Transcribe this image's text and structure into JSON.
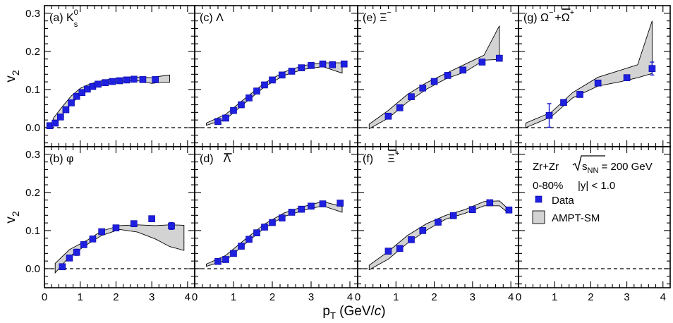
{
  "chart_data": {
    "type": "scatter",
    "shared": {
      "xlim": [
        0,
        4.2
      ],
      "ylim": [
        -0.05,
        0.32
      ],
      "xticks": [
        "0",
        "1",
        "2",
        "3",
        "4"
      ],
      "yticks": [
        "0.0",
        "0.1",
        "0.2",
        "0.3"
      ],
      "xlabel": "p",
      "xlabel_sub": "T",
      "xlabel_unit": " (GeV/",
      "xlabel_unit_italic": "c",
      "xlabel_close": ")",
      "ylabel": "v",
      "ylabel_sub": "2",
      "reference_line_y": 0.0
    },
    "legend": {
      "system": "Zr+Zr",
      "energy_prefix": "s",
      "energy_sub": "NN",
      "energy_value": " = 200 GeV",
      "centrality": "0-80%",
      "rapidity": "|y| < 1.0",
      "data_label": "Data",
      "band_label": "AMPT-SM"
    },
    "colors": {
      "data": "#1f1fe0",
      "band_fill": "#d3d3d3"
    },
    "panels": [
      {
        "id": "a",
        "label": "(a) K",
        "label_sup": "0",
        "label_sub": "s",
        "data": [
          [
            0.15,
            0.005
          ],
          [
            0.3,
            0.012
          ],
          [
            0.45,
            0.028
          ],
          [
            0.6,
            0.047
          ],
          [
            0.75,
            0.065
          ],
          [
            0.9,
            0.082
          ],
          [
            1.05,
            0.092
          ],
          [
            1.2,
            0.101
          ],
          [
            1.35,
            0.108
          ],
          [
            1.5,
            0.114
          ],
          [
            1.7,
            0.118
          ],
          [
            1.9,
            0.121
          ],
          [
            2.1,
            0.123
          ],
          [
            2.3,
            0.125
          ],
          [
            2.5,
            0.127
          ],
          [
            2.75,
            0.126
          ],
          [
            3.1,
            0.126
          ]
        ],
        "band_upper": [
          [
            0.25,
            0.025
          ],
          [
            0.5,
            0.055
          ],
          [
            0.75,
            0.083
          ],
          [
            1.0,
            0.103
          ],
          [
            1.25,
            0.114
          ],
          [
            1.5,
            0.121
          ],
          [
            1.75,
            0.126
          ],
          [
            2.0,
            0.129
          ],
          [
            2.25,
            0.131
          ],
          [
            2.5,
            0.133
          ],
          [
            2.75,
            0.132
          ],
          [
            3.0,
            0.131
          ],
          [
            3.25,
            0.135
          ],
          [
            3.5,
            0.138
          ]
        ],
        "band_lower": [
          [
            3.5,
            0.119
          ],
          [
            3.25,
            0.119
          ],
          [
            3.0,
            0.116
          ],
          [
            2.75,
            0.121
          ],
          [
            2.5,
            0.124
          ],
          [
            2.25,
            0.122
          ],
          [
            2.0,
            0.12
          ],
          [
            1.75,
            0.116
          ],
          [
            1.5,
            0.11
          ],
          [
            1.25,
            0.1
          ],
          [
            1.0,
            0.085
          ],
          [
            0.75,
            0.063
          ],
          [
            0.5,
            0.035
          ],
          [
            0.25,
            0.008
          ]
        ]
      },
      {
        "id": "b",
        "label": "(b)  φ",
        "label_sup": "",
        "label_sub": "",
        "data": [
          [
            0.5,
            0.005
          ],
          [
            0.7,
            0.028
          ],
          [
            0.9,
            0.043
          ],
          [
            1.1,
            0.063
          ],
          [
            1.35,
            0.078
          ],
          [
            1.6,
            0.097
          ],
          [
            2.0,
            0.107
          ],
          [
            2.5,
            0.118
          ],
          [
            3.0,
            0.131
          ],
          [
            3.55,
            0.112
          ]
        ],
        "errors": [
          [
            0.9,
            0.008
          ],
          [
            3.55,
            0.009
          ]
        ],
        "band_upper": [
          [
            0.3,
            0.014
          ],
          [
            0.7,
            0.05
          ],
          [
            1.2,
            0.075
          ],
          [
            1.6,
            0.099
          ],
          [
            2.1,
            0.113
          ],
          [
            2.6,
            0.115
          ],
          [
            3.1,
            0.113
          ],
          [
            3.5,
            0.115
          ],
          [
            3.9,
            0.114
          ]
        ],
        "band_lower": [
          [
            3.9,
            0.048
          ],
          [
            3.5,
            0.058
          ],
          [
            3.1,
            0.078
          ],
          [
            2.6,
            0.096
          ],
          [
            2.1,
            0.103
          ],
          [
            1.6,
            0.087
          ],
          [
            1.2,
            0.064
          ],
          [
            0.7,
            0.032
          ],
          [
            0.3,
            -0.011
          ]
        ]
      },
      {
        "id": "c",
        "label": "(c)   Λ",
        "label_sup": "",
        "label_sub": "",
        "data": [
          [
            0.6,
            0.016
          ],
          [
            0.8,
            0.025
          ],
          [
            1.0,
            0.045
          ],
          [
            1.2,
            0.06
          ],
          [
            1.4,
            0.078
          ],
          [
            1.6,
            0.096
          ],
          [
            1.8,
            0.112
          ],
          [
            2.0,
            0.125
          ],
          [
            2.25,
            0.138
          ],
          [
            2.5,
            0.148
          ],
          [
            2.75,
            0.157
          ],
          [
            3.0,
            0.163
          ],
          [
            3.3,
            0.167
          ],
          [
            3.55,
            0.165
          ],
          [
            3.85,
            0.167
          ]
        ],
        "band_upper": [
          [
            0.3,
            0.012
          ],
          [
            0.8,
            0.035
          ],
          [
            1.3,
            0.077
          ],
          [
            1.8,
            0.117
          ],
          [
            2.3,
            0.146
          ],
          [
            2.8,
            0.163
          ],
          [
            3.3,
            0.17
          ],
          [
            3.8,
            0.17
          ]
        ],
        "band_lower": [
          [
            3.8,
            0.143
          ],
          [
            3.3,
            0.16
          ],
          [
            2.8,
            0.153
          ],
          [
            2.3,
            0.137
          ],
          [
            1.8,
            0.107
          ],
          [
            1.3,
            0.065
          ],
          [
            0.8,
            0.022
          ],
          [
            0.3,
            0.006
          ]
        ]
      },
      {
        "id": "d",
        "label": "(d)",
        "label_sup": "",
        "label_sub": "",
        "label2": "Λ",
        "label2_overline": true,
        "data": [
          [
            0.6,
            0.019
          ],
          [
            0.8,
            0.024
          ],
          [
            1.0,
            0.04
          ],
          [
            1.2,
            0.059
          ],
          [
            1.4,
            0.077
          ],
          [
            1.6,
            0.094
          ],
          [
            1.8,
            0.109
          ],
          [
            2.0,
            0.121
          ],
          [
            2.25,
            0.133
          ],
          [
            2.5,
            0.148
          ],
          [
            2.75,
            0.156
          ],
          [
            3.0,
            0.164
          ],
          [
            3.3,
            0.17
          ],
          [
            3.75,
            0.172
          ]
        ],
        "band_upper": [
          [
            0.3,
            0.012
          ],
          [
            0.8,
            0.035
          ],
          [
            1.3,
            0.077
          ],
          [
            1.8,
            0.117
          ],
          [
            2.3,
            0.146
          ],
          [
            2.8,
            0.163
          ],
          [
            3.3,
            0.176
          ],
          [
            3.8,
            0.163
          ]
        ],
        "band_lower": [
          [
            3.8,
            0.148
          ],
          [
            3.3,
            0.165
          ],
          [
            2.8,
            0.153
          ],
          [
            2.3,
            0.137
          ],
          [
            1.8,
            0.107
          ],
          [
            1.3,
            0.065
          ],
          [
            0.8,
            0.022
          ],
          [
            0.3,
            0.006
          ]
        ]
      },
      {
        "id": "e",
        "label": "(e)   Ξ",
        "label_sup": "−",
        "label_sub": "",
        "data": [
          [
            0.8,
            0.03
          ],
          [
            1.1,
            0.052
          ],
          [
            1.4,
            0.081
          ],
          [
            1.7,
            0.104
          ],
          [
            2.0,
            0.121
          ],
          [
            2.35,
            0.137
          ],
          [
            2.75,
            0.151
          ],
          [
            3.25,
            0.172
          ],
          [
            3.7,
            0.182
          ]
        ],
        "band_upper": [
          [
            0.3,
            0.009
          ],
          [
            0.8,
            0.045
          ],
          [
            1.3,
            0.087
          ],
          [
            1.8,
            0.118
          ],
          [
            2.3,
            0.142
          ],
          [
            2.8,
            0.166
          ],
          [
            3.3,
            0.19
          ],
          [
            3.7,
            0.267
          ]
        ],
        "band_lower": [
          [
            3.7,
            0.179
          ],
          [
            3.3,
            0.177
          ],
          [
            2.8,
            0.146
          ],
          [
            2.3,
            0.128
          ],
          [
            1.8,
            0.101
          ],
          [
            1.3,
            0.067
          ],
          [
            0.8,
            0.025
          ],
          [
            0.3,
            -0.003
          ]
        ]
      },
      {
        "id": "f",
        "label": "(f)",
        "label_sup": "+",
        "label_sub": "",
        "label2": "Ξ",
        "label2_overline": true,
        "data": [
          [
            0.8,
            0.046
          ],
          [
            1.1,
            0.053
          ],
          [
            1.4,
            0.076
          ],
          [
            1.7,
            0.1
          ],
          [
            2.1,
            0.122
          ],
          [
            2.5,
            0.139
          ],
          [
            3.0,
            0.155
          ],
          [
            3.45,
            0.173
          ],
          [
            3.95,
            0.154
          ]
        ],
        "band_upper": [
          [
            0.3,
            0.009
          ],
          [
            0.8,
            0.045
          ],
          [
            1.3,
            0.087
          ],
          [
            1.8,
            0.118
          ],
          [
            2.3,
            0.14
          ],
          [
            2.8,
            0.155
          ],
          [
            3.3,
            0.176
          ],
          [
            3.7,
            0.178
          ],
          [
            3.9,
            0.16
          ]
        ],
        "band_lower": [
          [
            3.9,
            0.149
          ],
          [
            3.7,
            0.165
          ],
          [
            3.3,
            0.165
          ],
          [
            2.8,
            0.145
          ],
          [
            2.3,
            0.13
          ],
          [
            1.8,
            0.101
          ],
          [
            1.3,
            0.067
          ],
          [
            0.8,
            0.025
          ],
          [
            0.3,
            -0.003
          ]
        ]
      },
      {
        "id": "g",
        "label": "(g)   Ω",
        "label_sup": "−",
        "label2": "+Ω",
        "label2_overline": true,
        "label2_sup": "+",
        "data": [
          [
            0.85,
            0.032
          ],
          [
            1.25,
            0.066
          ],
          [
            1.7,
            0.087
          ],
          [
            2.2,
            0.117
          ],
          [
            3.0,
            0.131
          ],
          [
            3.7,
            0.155
          ]
        ],
        "errors": [
          [
            0.85,
            0.031
          ],
          [
            1.25,
            0.005
          ],
          [
            3.0,
            0.006
          ],
          [
            3.7,
            0.017
          ]
        ],
        "band_upper": [
          [
            0.2,
            0.012
          ],
          [
            0.9,
            0.04
          ],
          [
            1.5,
            0.092
          ],
          [
            2.2,
            0.132
          ],
          [
            2.8,
            0.15
          ],
          [
            3.3,
            0.165
          ],
          [
            3.7,
            0.28
          ]
        ],
        "band_lower": [
          [
            3.7,
            0.142
          ],
          [
            3.3,
            0.131
          ],
          [
            2.8,
            0.12
          ],
          [
            2.2,
            0.109
          ],
          [
            1.5,
            0.078
          ],
          [
            0.9,
            0.028
          ],
          [
            0.2,
            0.0
          ]
        ]
      }
    ]
  }
}
